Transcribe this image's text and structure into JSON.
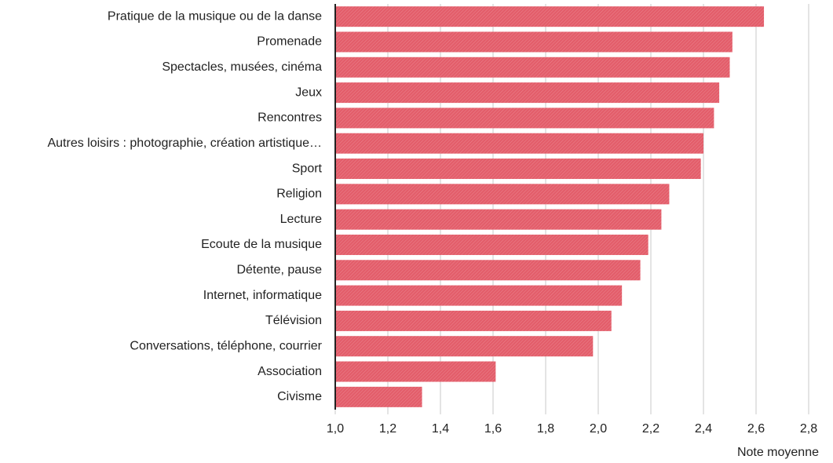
{
  "chart_data": {
    "type": "barh",
    "xlabel": "Note moyenne",
    "categories": [
      "Pratique de la musique ou de la danse",
      "Promenade",
      "Spectacles, musées, cinéma",
      "Jeux",
      "Rencontres",
      "Autres loisirs : photographie, création artistique…",
      "Sport",
      "Religion",
      "Lecture",
      "Ecoute de la musique",
      "Détente, pause",
      "Internet, informatique",
      "Télévision",
      "Conversations, téléphone, courrier",
      "Association",
      "Civisme"
    ],
    "values": [
      2.63,
      2.51,
      2.5,
      2.46,
      2.44,
      2.4,
      2.39,
      2.27,
      2.24,
      2.19,
      2.16,
      2.09,
      2.05,
      1.98,
      1.61,
      1.33
    ],
    "color": "#e35d6a",
    "xlim": [
      1.0,
      2.8
    ],
    "xticks": [
      {
        "value": 1.0,
        "label": "1,0"
      },
      {
        "value": 1.2,
        "label": "1,2"
      },
      {
        "value": 1.4,
        "label": "1,4"
      },
      {
        "value": 1.6,
        "label": "1,6"
      },
      {
        "value": 1.8,
        "label": "1,8"
      },
      {
        "value": 2.0,
        "label": "2,0"
      },
      {
        "value": 2.2,
        "label": "2,2"
      },
      {
        "value": 2.4,
        "label": "2,4"
      },
      {
        "value": 2.6,
        "label": "2,6"
      },
      {
        "value": 2.8,
        "label": "2,8"
      }
    ],
    "grid": true
  }
}
